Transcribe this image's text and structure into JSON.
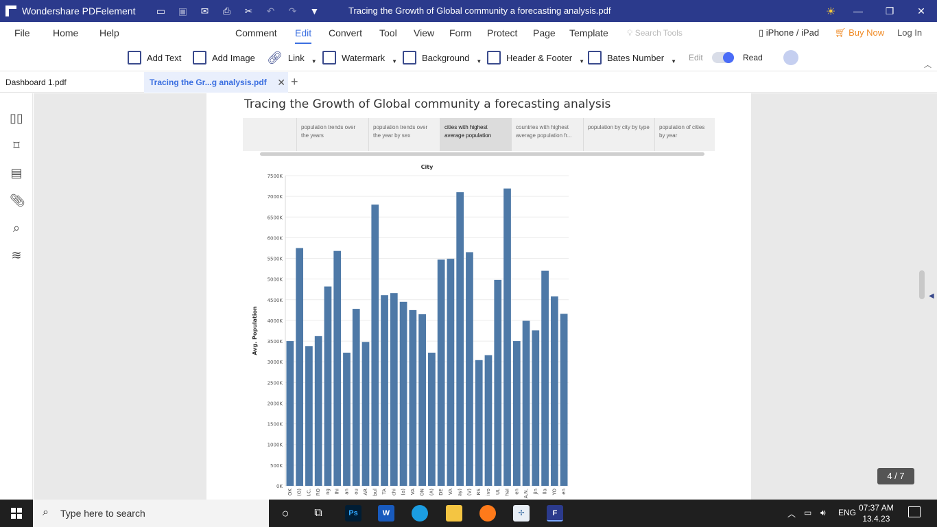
{
  "titlebar": {
    "app_name": "Wondershare PDFelement",
    "document_title": "Tracing the Growth of Global community a forecasting analysis.pdf"
  },
  "menubar": {
    "items": [
      "File",
      "Home",
      "Help",
      "Comment",
      "Edit",
      "Convert",
      "Tool",
      "View",
      "Form",
      "Protect",
      "Page",
      "Template"
    ],
    "active": "Edit",
    "search_placeholder": "Search Tools",
    "device": "iPhone / iPad",
    "buy_now": "Buy Now",
    "login": "Log In"
  },
  "toolbar": {
    "add_text": "Add Text",
    "add_image": "Add Image",
    "link": "Link",
    "watermark": "Watermark",
    "background": "Background",
    "header_footer": "Header & Footer",
    "bates_number": "Bates Number",
    "edit_label": "Edit",
    "read_label": "Read"
  },
  "tabs": {
    "tab1": "Dashboard 1.pdf",
    "tab2": "Tracing  the  Gr...g analysis.pdf",
    "close": "✕",
    "add": "+"
  },
  "page": {
    "title": "Tracing the Growth of Global community a forecasting analysis",
    "dash_tabs": [
      "",
      "population trends over the years",
      "population trends over the year by sex",
      "cities with highest average population",
      "countries with highest average population fr...",
      "population by city by type",
      "population of cities by year"
    ],
    "active_dash_tab": 3,
    "page_counter": "4 / 7"
  },
  "chart_data": {
    "type": "bar",
    "title": "City",
    "ylabel": "Avg. Population",
    "ylim": [
      0,
      7500000
    ],
    "yticks": [
      "0K",
      "500K",
      "1000K",
      "1500K",
      "2000K",
      "2500K",
      "3000K",
      "3500K",
      "4000K",
      "4500K",
      "5000K",
      "5500K",
      "6000K",
      "6500K",
      "7000K",
      "7500K"
    ],
    "categories": [
      "OK",
      "(G)",
      "I.C.",
      "RO",
      "ng",
      "lhi",
      "an",
      "ou",
      "AR",
      "bul",
      "TA",
      "chi",
      "(a)",
      "VA",
      "ON",
      "(A)",
      "DE",
      "VA",
      "ay)",
      "(V)",
      "RS",
      "ivo",
      "UL",
      "hai",
      "en",
      "A.N.",
      "jin",
      "lla",
      "YO",
      "en"
    ],
    "values": [
      3500000,
      5750000,
      3380000,
      3620000,
      4820000,
      5680000,
      3220000,
      4280000,
      3480000,
      6800000,
      4610000,
      4660000,
      4450000,
      4250000,
      4150000,
      3220000,
      5470000,
      5490000,
      7100000,
      5650000,
      3040000,
      3160000,
      4980000,
      7190000,
      3500000,
      3990000,
      3760000,
      5200000,
      4580000,
      4160000
    ],
    "bar_color": "#4e79a7"
  },
  "taskbar": {
    "search_placeholder": "Type here to search",
    "lang": "ENG",
    "time": "07:37 AM",
    "date": "13.4.23"
  }
}
